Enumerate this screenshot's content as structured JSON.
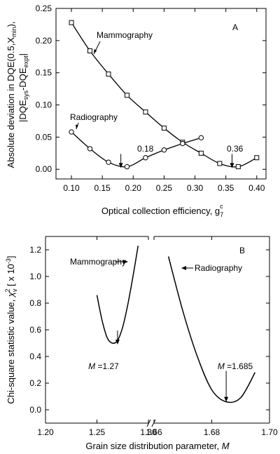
{
  "chart_data": [
    {
      "type": "line",
      "panel_label": "A",
      "xlabel": "Optical collection efficiency, g",
      "xlabel_sub": "7",
      "xlabel_sup": "c",
      "ylabel_line1": "Absolute deviation in DQE(0.5,X",
      "ylabel_line1_sub": "min",
      "ylabel_line1_end": "),",
      "ylabel_line2_pre": "|DQE",
      "ylabel_line2_sub1": "sys",
      "ylabel_line2_mid": "-DQE",
      "ylabel_line2_sub2": "expt",
      "ylabel_line2_end": "|",
      "xlim": [
        0.075,
        0.415
      ],
      "ylim": [
        -0.015,
        0.25
      ],
      "xticks": [
        "0.10",
        "0.15",
        "0.20",
        "0.25",
        "0.30",
        "0.35",
        "0.40"
      ],
      "yticks": [
        "0.00",
        "0.05",
        "0.10",
        "0.15",
        "0.20",
        "0.25"
      ],
      "series": [
        {
          "name": "Mammography",
          "marker": "square",
          "x": [
            0.1,
            0.13,
            0.16,
            0.19,
            0.22,
            0.25,
            0.28,
            0.31,
            0.34,
            0.37,
            0.4
          ],
          "y": [
            0.228,
            0.184,
            0.148,
            0.115,
            0.089,
            0.064,
            0.042,
            0.025,
            0.009,
            0.004,
            0.018
          ]
        },
        {
          "name": "Radiography",
          "marker": "circle",
          "x": [
            0.1,
            0.13,
            0.16,
            0.19,
            0.22,
            0.25,
            0.28,
            0.31
          ],
          "y": [
            0.058,
            0.032,
            0.011,
            0.004,
            0.018,
            0.03,
            0.04,
            0.049
          ]
        }
      ],
      "annotations": [
        {
          "text": "0.18",
          "x": 0.18,
          "y": 0.002
        },
        {
          "text": "0.36",
          "x": 0.36,
          "y": 0.002
        }
      ]
    },
    {
      "type": "line",
      "panel_label": "B",
      "xlabel": "Grain size distribution parameter, ",
      "xlabel_var": "M",
      "ylabel_pre": "Chi-square statistic value, ",
      "ylabel_chi": "χ",
      "ylabel_chi_sub": "v",
      "ylabel_chi_sup": "2",
      "ylabel_post": " [ x 10",
      "ylabel_exp": "-3",
      "ylabel_end": "]",
      "ylim": [
        -0.1,
        1.3
      ],
      "yticks": [
        "0.0",
        "0.2",
        "0.4",
        "0.6",
        "0.8",
        "1.0",
        "1.2"
      ],
      "axis_break": true,
      "segments": [
        {
          "xlim": [
            1.2,
            1.3
          ],
          "xticks": [
            "1.20",
            "1.25",
            "1.30"
          ]
        },
        {
          "xlim": [
            1.66,
            1.7
          ],
          "xticks": [
            "1.66",
            "1.68",
            "1.70"
          ]
        }
      ],
      "series": [
        {
          "name": "Mammography",
          "segment": 0,
          "x": [
            1.25,
            1.255,
            1.26,
            1.265,
            1.27,
            1.275,
            1.28,
            1.285,
            1.29
          ],
          "y": [
            0.86,
            0.67,
            0.54,
            0.5,
            0.52,
            0.62,
            0.79,
            1.0,
            1.23
          ]
        },
        {
          "name": "Radiography",
          "segment": 1,
          "x": [
            1.665,
            1.67,
            1.675,
            1.68,
            1.685,
            1.69,
            1.695
          ],
          "y": [
            1.15,
            0.74,
            0.4,
            0.15,
            0.06,
            0.09,
            0.28
          ]
        }
      ],
      "annotations": [
        {
          "prefix": "M",
          "text": " =1.27",
          "segment": 0,
          "x": 1.27,
          "y": 0.5
        },
        {
          "prefix": "M",
          "text": " =1.685",
          "segment": 1,
          "x": 1.685,
          "y": 0.06
        }
      ]
    }
  ]
}
